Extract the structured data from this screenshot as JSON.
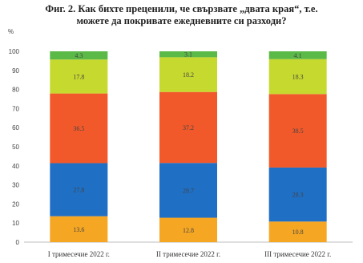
{
  "chart_data": {
    "type": "bar",
    "stacked": true,
    "title_lines": [
      "Фиг. 2. Как бихте преценили, че свързвате „двата края“, т.е.",
      "можете да покривате ежедневните си разходи?"
    ],
    "ylabel": "%",
    "ylim": [
      0,
      100
    ],
    "yticks": [
      0,
      10,
      20,
      30,
      40,
      50,
      60,
      70,
      80,
      90,
      100
    ],
    "grid": false,
    "legend": "none",
    "categories": [
      "I тримесечие 2022 г.",
      "II тримесечие 2022 г.",
      "III тримесечие 2022 г."
    ],
    "series": [
      {
        "color": "#F5A623",
        "values": [
          13.6,
          12.8,
          10.8
        ],
        "labels": [
          "13.6",
          "12.8",
          "10.8"
        ]
      },
      {
        "color": "#1F6FC5",
        "values": [
          27.8,
          28.7,
          28.3
        ],
        "labels": [
          "27.8",
          "28.7",
          "28.3"
        ]
      },
      {
        "color": "#F1592A",
        "values": [
          36.5,
          37.2,
          38.5
        ],
        "labels": [
          "36.5",
          "37.2",
          "38.5"
        ]
      },
      {
        "color": "#C6D92E",
        "values": [
          17.8,
          18.2,
          18.3
        ],
        "labels": [
          "17.8",
          "18.2",
          "18.3"
        ]
      },
      {
        "color": "#5BB947",
        "values": [
          4.3,
          3.1,
          4.1
        ],
        "labels": [
          "4.3",
          "3.1",
          "4.1"
        ]
      }
    ]
  }
}
